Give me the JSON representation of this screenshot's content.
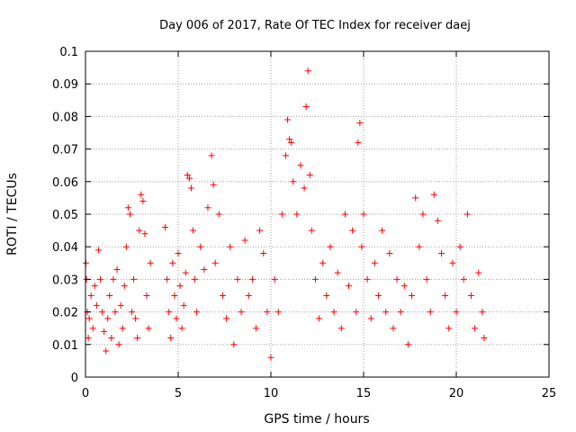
{
  "chart_data": {
    "type": "scatter",
    "title": "Day 006 of 2017, Rate Of TEC Index for receiver daej",
    "xlabel": "GPS time / hours",
    "ylabel": "ROTI / TECUs",
    "xlim": [
      0,
      25
    ],
    "ylim": [
      0,
      0.1
    ],
    "x_ticks": [
      "0",
      "5",
      "10",
      "15",
      "20",
      "25"
    ],
    "y_ticks": [
      "0",
      "0.01",
      "0.02",
      "0.03",
      "0.04",
      "0.05",
      "0.06",
      "0.07",
      "0.08",
      "0.09",
      "0.1"
    ],
    "grid": true,
    "marker": "+",
    "color": "#ff0000",
    "series": [
      {
        "values": [
          [
            0.02,
            0.035
          ],
          [
            0.05,
            0.03
          ],
          [
            0.1,
            0.02
          ],
          [
            0.15,
            0.012
          ],
          [
            0.2,
            0.018
          ],
          [
            0.3,
            0.025
          ],
          [
            0.4,
            0.015
          ],
          [
            0.5,
            0.028
          ],
          [
            0.6,
            0.022
          ],
          [
            0.7,
            0.039
          ],
          [
            0.8,
            0.03
          ],
          [
            0.9,
            0.02
          ],
          [
            1.0,
            0.014
          ],
          [
            1.1,
            0.008
          ],
          [
            1.2,
            0.018
          ],
          [
            1.3,
            0.025
          ],
          [
            1.4,
            0.012
          ],
          [
            1.5,
            0.03
          ],
          [
            1.6,
            0.02
          ],
          [
            1.7,
            0.033
          ],
          [
            1.8,
            0.01
          ],
          [
            1.9,
            0.022
          ],
          [
            2.0,
            0.015
          ],
          [
            2.1,
            0.028
          ],
          [
            2.2,
            0.04
          ],
          [
            2.3,
            0.052
          ],
          [
            2.4,
            0.05
          ],
          [
            2.5,
            0.02
          ],
          [
            2.6,
            0.03
          ],
          [
            2.7,
            0.018
          ],
          [
            2.8,
            0.012
          ],
          [
            2.9,
            0.045
          ],
          [
            3.0,
            0.056
          ],
          [
            3.1,
            0.054
          ],
          [
            3.2,
            0.044
          ],
          [
            3.3,
            0.025
          ],
          [
            3.4,
            0.015
          ],
          [
            3.5,
            0.035
          ],
          [
            4.3,
            0.046
          ],
          [
            4.4,
            0.03
          ],
          [
            4.5,
            0.02
          ],
          [
            4.6,
            0.012
          ],
          [
            4.7,
            0.035
          ],
          [
            4.8,
            0.025
          ],
          [
            4.9,
            0.018
          ],
          [
            5.0,
            0.038
          ],
          [
            5.1,
            0.028
          ],
          [
            5.2,
            0.015
          ],
          [
            5.3,
            0.022
          ],
          [
            5.4,
            0.032
          ],
          [
            5.5,
            0.062
          ],
          [
            5.6,
            0.061
          ],
          [
            5.7,
            0.058
          ],
          [
            5.8,
            0.045
          ],
          [
            5.9,
            0.03
          ],
          [
            6.0,
            0.02
          ],
          [
            6.2,
            0.04
          ],
          [
            6.4,
            0.033
          ],
          [
            6.6,
            0.052
          ],
          [
            6.8,
            0.068
          ],
          [
            6.9,
            0.059
          ],
          [
            7.0,
            0.035
          ],
          [
            7.2,
            0.05
          ],
          [
            7.4,
            0.025
          ],
          [
            7.6,
            0.018
          ],
          [
            7.8,
            0.04
          ],
          [
            8.0,
            0.01
          ],
          [
            8.2,
            0.03
          ],
          [
            8.4,
            0.02
          ],
          [
            8.6,
            0.042
          ],
          [
            8.8,
            0.025
          ],
          [
            9.0,
            0.03
          ],
          [
            9.2,
            0.015
          ],
          [
            9.4,
            0.045
          ],
          [
            9.6,
            0.038
          ],
          [
            9.8,
            0.02
          ],
          [
            10.0,
            0.006
          ],
          [
            10.2,
            0.03
          ],
          [
            10.4,
            0.02
          ],
          [
            10.6,
            0.05
          ],
          [
            10.8,
            0.068
          ],
          [
            10.9,
            0.079
          ],
          [
            11.0,
            0.073
          ],
          [
            11.1,
            0.072
          ],
          [
            11.2,
            0.06
          ],
          [
            11.4,
            0.05
          ],
          [
            11.6,
            0.065
          ],
          [
            11.8,
            0.058
          ],
          [
            11.9,
            0.083
          ],
          [
            12.0,
            0.094
          ],
          [
            12.1,
            0.062
          ],
          [
            12.2,
            0.045
          ],
          [
            12.4,
            0.03
          ],
          [
            12.6,
            0.018
          ],
          [
            12.8,
            0.035
          ],
          [
            13.0,
            0.025
          ],
          [
            13.2,
            0.04
          ],
          [
            13.4,
            0.02
          ],
          [
            13.6,
            0.032
          ],
          [
            13.8,
            0.015
          ],
          [
            14.0,
            0.05
          ],
          [
            14.2,
            0.028
          ],
          [
            14.4,
            0.045
          ],
          [
            14.6,
            0.02
          ],
          [
            14.7,
            0.072
          ],
          [
            14.8,
            0.078
          ],
          [
            14.9,
            0.04
          ],
          [
            15.0,
            0.05
          ],
          [
            15.2,
            0.03
          ],
          [
            15.4,
            0.018
          ],
          [
            15.6,
            0.035
          ],
          [
            15.8,
            0.025
          ],
          [
            16.0,
            0.045
          ],
          [
            16.2,
            0.02
          ],
          [
            16.4,
            0.038
          ],
          [
            16.6,
            0.015
          ],
          [
            16.8,
            0.03
          ],
          [
            17.0,
            0.02
          ],
          [
            17.2,
            0.028
          ],
          [
            17.4,
            0.01
          ],
          [
            17.6,
            0.025
          ],
          [
            17.8,
            0.055
          ],
          [
            18.0,
            0.04
          ],
          [
            18.2,
            0.05
          ],
          [
            18.4,
            0.03
          ],
          [
            18.6,
            0.02
          ],
          [
            18.8,
            0.056
          ],
          [
            19.0,
            0.048
          ],
          [
            19.2,
            0.038
          ],
          [
            19.4,
            0.025
          ],
          [
            19.6,
            0.015
          ],
          [
            19.8,
            0.035
          ],
          [
            20.0,
            0.02
          ],
          [
            20.2,
            0.04
          ],
          [
            20.4,
            0.03
          ],
          [
            20.6,
            0.05
          ],
          [
            20.8,
            0.025
          ],
          [
            21.0,
            0.015
          ],
          [
            21.2,
            0.032
          ],
          [
            21.4,
            0.02
          ],
          [
            21.5,
            0.012
          ]
        ]
      }
    ]
  }
}
